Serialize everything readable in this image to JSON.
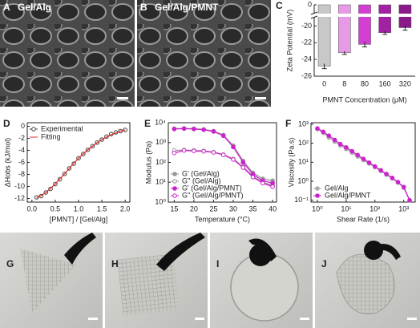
{
  "images": [
    {
      "panel": "A",
      "label": "Gel/Alg"
    },
    {
      "panel": "B",
      "label": "Gel/Alg/PMNT"
    },
    {
      "panel": "G"
    },
    {
      "panel": "H"
    },
    {
      "panel": "I"
    },
    {
      "panel": "J"
    }
  ],
  "chart_data": [
    {
      "type": "bar",
      "panel": "C",
      "x_label": "PMNT Concentration (μM)",
      "y_label": "Zeta Potential (mV)",
      "categories": [
        "0",
        "8",
        "80",
        "160",
        "320"
      ],
      "values": [
        -24.8,
        -23.2,
        -22.2,
        -20.8,
        -20.2
      ],
      "errors": [
        0.3,
        0.2,
        0.3,
        0.2,
        0.3
      ],
      "colors": [
        "#c8c8c8",
        "#e79be7",
        "#d23fd2",
        "#a31fa3",
        "#8a1a8a"
      ],
      "ylim": [
        -26,
        0
      ],
      "yticks": [
        0,
        -20,
        -22,
        -24,
        -26
      ],
      "y_break": [
        -19,
        -1
      ]
    },
    {
      "type": "scatter",
      "panel": "D",
      "x_label": "[PMNT] / [Gel/Alg]",
      "y_label": "ΔHobs (kJ/mol)",
      "x": [
        0.1,
        0.2,
        0.3,
        0.4,
        0.5,
        0.6,
        0.7,
        0.8,
        0.9,
        1.0,
        1.1,
        1.2,
        1.3,
        1.4,
        1.5,
        1.6,
        1.7,
        1.8,
        1.9,
        2.0
      ],
      "series": [
        {
          "name": "Experimental",
          "color": "#444444",
          "markers": "open",
          "line": false,
          "values": [
            -11.8,
            -11.6,
            -11.0,
            -10.4,
            -9.6,
            -8.8,
            -7.9,
            -7.0,
            -6.2,
            -5.3,
            -4.6,
            -3.9,
            -3.3,
            -2.7,
            -2.2,
            -1.7,
            -1.3,
            -1.0,
            -0.8,
            -0.6
          ]
        },
        {
          "name": "Fitting",
          "color": "#e03030",
          "markers": "none",
          "line": true,
          "values": [
            -11.9,
            -11.5,
            -11.0,
            -10.3,
            -9.6,
            -8.7,
            -7.9,
            -7.0,
            -6.1,
            -5.3,
            -4.6,
            -3.9,
            -3.3,
            -2.7,
            -2.2,
            -1.8,
            -1.4,
            -1.1,
            -0.8,
            -0.6
          ]
        }
      ],
      "xlim": [
        -0.1,
        2.1
      ],
      "xticks": [
        {
          "value": 0,
          "label": "0.0"
        },
        0.5,
        {
          "value": 1,
          "label": "1.0"
        },
        1.5,
        {
          "value": 2,
          "label": "2.0"
        }
      ],
      "ylim": [
        -12.6,
        0.6
      ],
      "yticks": [
        0,
        -2,
        -4,
        -6,
        -8,
        -10,
        -12
      ],
      "legend": "upper left"
    },
    {
      "type": "line",
      "panel": "E",
      "x_label": "Temperature (°C)",
      "y_label": "Modulus (Pa)",
      "log_y": true,
      "x": [
        15,
        17.5,
        20,
        22.5,
        25,
        27.5,
        30,
        32.5,
        35,
        37.5,
        40
      ],
      "series": [
        {
          "name": "G' (Gel/Alg)",
          "color": "#999999",
          "markers": "filled",
          "line": true,
          "values": [
            5000,
            5200,
            5000,
            4600,
            3800,
            2400,
            700,
            120,
            30,
            15,
            12
          ]
        },
        {
          "name": "G'' (Gel/Alg)",
          "color": "#999999",
          "markers": "open",
          "line": true,
          "values": [
            400,
            420,
            400,
            380,
            330,
            250,
            150,
            60,
            20,
            10,
            7
          ]
        },
        {
          "name": "G' (Gel/Alg/PMNT)",
          "color": "#cc22cc",
          "markers": "filled",
          "line": true,
          "values": [
            4800,
            5000,
            4800,
            4400,
            3600,
            2200,
            600,
            100,
            25,
            12,
            9
          ]
        },
        {
          "name": "G'' (Gel/Alg/PMNT)",
          "color": "#cc22cc",
          "markers": "open",
          "line": true,
          "values": [
            300,
            400,
            380,
            360,
            320,
            240,
            140,
            55,
            18,
            9,
            6
          ]
        }
      ],
      "xlim": [
        13.5,
        41
      ],
      "xticks": [
        15,
        20,
        25,
        30,
        35,
        40
      ],
      "ylim": [
        1,
        10000
      ],
      "yticks": [
        {
          "value": 1,
          "label": "10⁰"
        },
        {
          "value": 10,
          "label": "10¹"
        },
        {
          "value": 100,
          "label": "10²"
        },
        {
          "value": 1000,
          "label": "10³"
        },
        {
          "value": 10000,
          "label": "10⁴"
        }
      ],
      "legend": "lower left"
    },
    {
      "type": "line",
      "panel": "F",
      "x_label": "Shear Rate (1/s)",
      "y_label": "Viscosity (Pa.s)",
      "log_x": true,
      "log_y": true,
      "x": [
        1,
        1.6,
        2.5,
        4,
        6.3,
        10,
        16,
        25,
        40,
        63,
        100,
        160,
        250,
        400,
        630,
        1000,
        1600
      ],
      "series": [
        {
          "name": "Gel/Alg",
          "color": "#aaaaaa",
          "markers": "filled",
          "line": true,
          "values": [
            550,
            350,
            200,
            120,
            75,
            50,
            32,
            20,
            13,
            8.5,
            5.5,
            3.5,
            2.2,
            1.4,
            0.85,
            0.45,
            0.1
          ]
        },
        {
          "name": "Gel/Alg/PMNT",
          "color": "#cc22cc",
          "markers": "filled",
          "line": true,
          "values": [
            600,
            400,
            250,
            150,
            90,
            60,
            38,
            24,
            15,
            9.5,
            6,
            3.8,
            2.4,
            1.5,
            0.9,
            0.5,
            0.1
          ]
        }
      ],
      "xlim": [
        0.6,
        2500
      ],
      "xticks": [
        {
          "value": 1,
          "label": "10⁰"
        },
        {
          "value": 10,
          "label": "10¹"
        },
        {
          "value": 100,
          "label": "10²"
        },
        {
          "value": 1000,
          "label": "10³"
        }
      ],
      "ylim": [
        0.08,
        1200
      ],
      "yticks": [
        {
          "value": 0.1,
          "label": "10⁻¹"
        },
        {
          "value": 1,
          "label": "10⁰"
        },
        {
          "value": 10,
          "label": "10¹"
        },
        {
          "value": 100,
          "label": "10²"
        },
        {
          "value": 1000,
          "label": "10³"
        }
      ],
      "legend": "lower left"
    }
  ]
}
